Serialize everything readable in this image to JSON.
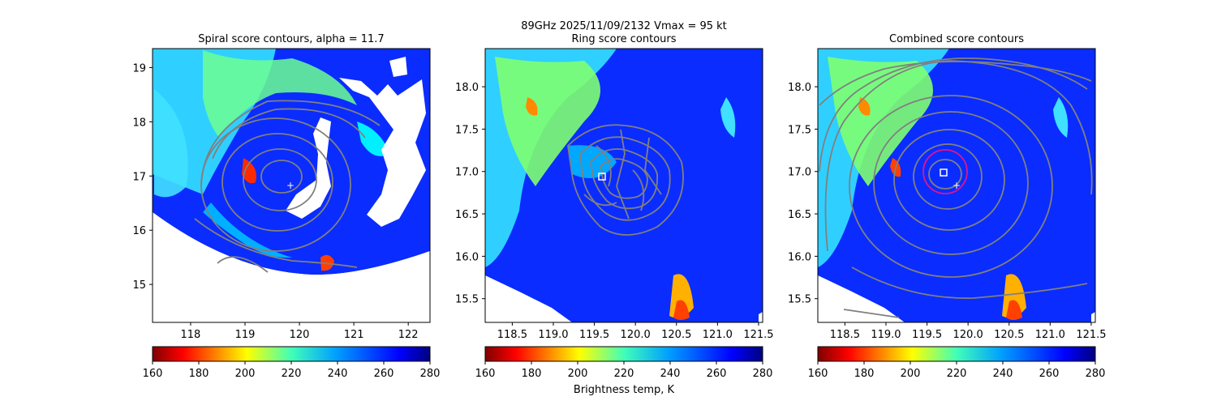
{
  "figure": {
    "suptitle_line1": "89GHz  2025/11/09/2132    Vmax = 95 kt",
    "colorbar_label": "Brightness temp, K"
  },
  "chart_data": [
    {
      "type": "heatmap",
      "title": "Spiral score contours, alpha = 11.7",
      "xlim": [
        117.3,
        122.4
      ],
      "ylim": [
        14.3,
        19.35
      ],
      "xticks": [
        118,
        119,
        120,
        121,
        122
      ],
      "yticks": [
        15,
        16,
        17,
        18,
        19
      ],
      "center_marker": [
        119.8,
        16.85
      ],
      "colorbar": {
        "vmin": 160,
        "vmax": 280,
        "ticks": [
          160,
          180,
          200,
          220,
          240,
          260,
          280
        ],
        "colormap": "jet_r"
      }
    },
    {
      "type": "heatmap",
      "title": "Ring score contours",
      "xlim": [
        118.17,
        121.55
      ],
      "ylim": [
        15.22,
        18.45
      ],
      "xticks": [
        118.5,
        119.0,
        119.5,
        120.0,
        120.5,
        121.0,
        121.5
      ],
      "yticks": [
        15.5,
        16.0,
        16.5,
        17.0,
        17.5,
        18.0
      ],
      "square_marker": [
        119.6,
        16.95
      ],
      "colorbar": {
        "vmin": 160,
        "vmax": 280,
        "ticks": [
          160,
          180,
          200,
          220,
          240,
          260,
          280
        ],
        "colormap": "jet_r"
      }
    },
    {
      "type": "heatmap",
      "title": "Combined score contours",
      "xlim": [
        118.17,
        121.55
      ],
      "ylim": [
        15.22,
        18.45
      ],
      "xticks": [
        118.5,
        119.0,
        119.5,
        120.0,
        120.5,
        121.0,
        121.5
      ],
      "yticks": [
        15.5,
        16.0,
        16.5,
        17.0,
        17.5,
        18.0
      ],
      "square_marker": [
        119.7,
        17.0
      ],
      "center_marker": [
        119.85,
        16.85
      ],
      "circle": {
        "center": [
          119.7,
          17.0
        ],
        "radius_deg": 0.25,
        "color": "#e0158a"
      },
      "colorbar": {
        "vmin": 160,
        "vmax": 280,
        "ticks": [
          160,
          180,
          200,
          220,
          240,
          260,
          280
        ],
        "colormap": "jet_r"
      }
    }
  ]
}
